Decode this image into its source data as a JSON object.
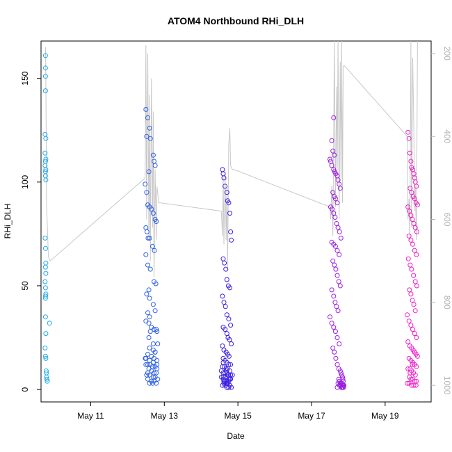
{
  "chart_data": {
    "type": "scatter",
    "title": "ATOM4 Northbound RHi_DLH",
    "xlabel": "Date",
    "ylabel": "RHi_DLH",
    "x_ticks": [
      "May 11",
      "May 13",
      "May 15",
      "May 17",
      "May 19"
    ],
    "xlim": [
      9.65,
      20.25
    ],
    "ylim": [
      -6,
      168
    ],
    "y_ticks": [
      0,
      50,
      100,
      150
    ],
    "y2_ticks": [
      200,
      400,
      600,
      800,
      1000
    ],
    "y2lim": [
      1040,
      170
    ],
    "grid": false,
    "colors": {
      "point_start": "#1FA8E8",
      "point_mid": "#3A1FE0",
      "point_end": "#F01FC8",
      "pressure_line": "#c8c8c8",
      "axis": "#000000",
      "right_axis": "#b3b3b3"
    },
    "series": [
      {
        "kind": "points",
        "color": "#1FA8E8",
        "x": [
          9.77,
          9.77,
          9.77,
          9.77,
          9.76,
          9.78,
          9.76,
          9.78,
          9.77,
          9.76,
          9.78,
          9.77,
          9.77,
          9.78,
          9.76,
          9.77,
          9.78,
          9.77,
          9.78,
          9.76,
          9.77,
          9.78,
          9.77,
          9.77,
          9.77,
          9.78,
          9.76,
          9.77,
          9.78,
          9.79,
          9.8,
          9.8,
          9.81,
          9.82,
          9.88
        ],
        "y": [
          161,
          155,
          151,
          144,
          123,
          121,
          114,
          111,
          110,
          108,
          106,
          105,
          103,
          101,
          73,
          68,
          61,
          59,
          56,
          52,
          49,
          46,
          45,
          44,
          35,
          27,
          20,
          16,
          15,
          9,
          8,
          6,
          5,
          4,
          32
        ]
      },
      {
        "kind": "points",
        "color": "#2E5FE8",
        "x": [
          12.5,
          12.55,
          12.6,
          12.52,
          12.62,
          12.7,
          12.72,
          12.75,
          12.58,
          12.48,
          12.52,
          12.55,
          12.6,
          12.65,
          12.7,
          12.75,
          12.78,
          12.5,
          12.53,
          12.56,
          12.6,
          12.68,
          12.73,
          12.5,
          12.55,
          12.62,
          12.72,
          12.77,
          12.58,
          12.52,
          12.6,
          12.7,
          12.75,
          12.55,
          12.6,
          12.5,
          12.58,
          12.65,
          12.72,
          12.78,
          12.8,
          12.82,
          12.6,
          12.7,
          12.75,
          12.55,
          12.65,
          12.48,
          12.72,
          12.8,
          12.6,
          12.7,
          12.55,
          12.62,
          12.5,
          12.68,
          12.75,
          12.8,
          12.58,
          12.65,
          12.72,
          12.78,
          12.52,
          12.6,
          12.7,
          12.75,
          12.82,
          12.55,
          12.65,
          12.72,
          12.6,
          12.68,
          12.78,
          12.5,
          12.58,
          12.62,
          12.7,
          12.75,
          12.8,
          12.55
        ],
        "y": [
          135,
          131,
          126,
          122,
          121,
          113,
          110,
          108,
          105,
          99,
          95,
          89,
          88,
          87,
          85,
          82,
          81,
          78,
          76,
          73,
          73,
          69,
          67,
          65,
          60,
          58,
          52,
          51,
          48,
          46,
          44,
          41,
          38,
          37,
          35,
          33,
          32,
          30,
          29,
          29,
          28,
          22,
          20,
          19,
          18,
          17,
          16,
          15,
          15,
          14,
          14,
          13,
          12,
          12,
          12,
          11,
          11,
          10,
          10,
          9,
          8,
          8,
          7,
          7,
          6,
          6,
          5,
          5,
          4,
          4,
          3,
          3,
          3,
          15,
          25,
          28,
          22,
          18,
          12,
          8
        ]
      },
      {
        "kind": "points",
        "color": "#3A1FE0",
        "x": [
          14.58,
          14.6,
          14.62,
          14.65,
          14.7,
          14.72,
          14.75,
          14.78,
          14.8,
          14.82,
          14.6,
          14.63,
          14.67,
          14.7,
          14.74,
          14.78,
          14.58,
          14.62,
          14.66,
          14.7,
          14.75,
          14.8,
          14.6,
          14.65,
          14.7,
          14.73,
          14.77,
          14.82,
          14.58,
          14.62,
          14.68,
          14.72,
          14.76,
          14.6,
          14.65,
          14.7,
          14.75,
          14.8,
          14.58,
          14.63,
          14.68,
          14.72,
          14.78,
          14.55,
          14.6,
          14.65,
          14.7,
          14.75,
          14.8,
          14.85,
          14.55,
          14.6,
          14.65,
          14.7,
          14.75,
          14.8,
          14.6,
          14.65,
          14.7,
          14.75,
          14.62,
          14.68,
          14.72,
          14.78,
          14.58,
          14.65,
          14.7,
          14.75,
          14.82,
          14.6,
          14.68,
          14.72,
          14.78,
          14.62,
          14.7
        ],
        "y": [
          106,
          104,
          102,
          98,
          95,
          91,
          90,
          85,
          76,
          72,
          63,
          61,
          58,
          53,
          50,
          49,
          45,
          42,
          40,
          36,
          34,
          31,
          30,
          29,
          27,
          25,
          24,
          22,
          21,
          19,
          18,
          17,
          16,
          15,
          14,
          13,
          12,
          12,
          11,
          11,
          10,
          10,
          9,
          9,
          8,
          8,
          8,
          7,
          7,
          7,
          6,
          6,
          6,
          6,
          5,
          5,
          5,
          4,
          4,
          4,
          3,
          3,
          3,
          2,
          2,
          2,
          1,
          1,
          1,
          13,
          9,
          7,
          5,
          4,
          3
        ]
      },
      {
        "kind": "points",
        "color": "#9A1FE0",
        "x": [
          17.6,
          17.55,
          17.58,
          17.62,
          17.5,
          17.52,
          17.55,
          17.6,
          17.63,
          17.66,
          17.7,
          17.72,
          17.75,
          17.78,
          17.58,
          17.62,
          17.65,
          17.7,
          17.52,
          17.56,
          17.6,
          17.64,
          17.68,
          17.72,
          17.76,
          17.8,
          17.55,
          17.6,
          17.65,
          17.7,
          17.75,
          17.58,
          17.62,
          17.66,
          17.7,
          17.74,
          17.78,
          17.55,
          17.6,
          17.64,
          17.68,
          17.72,
          17.5,
          17.55,
          17.6,
          17.65,
          17.7,
          17.75,
          17.58,
          17.62,
          17.66,
          17.7,
          17.74,
          17.78,
          17.8,
          17.82,
          17.84,
          17.85,
          17.86,
          17.75,
          17.78,
          17.8,
          17.82,
          17.84,
          17.86,
          17.88,
          17.76,
          17.79,
          17.81,
          17.83,
          17.85,
          17.87,
          17.7,
          17.72,
          17.74
        ],
        "y": [
          131,
          120,
          115,
          113,
          111,
          110,
          108,
          106,
          105,
          104,
          103,
          101,
          99,
          97,
          95,
          93,
          92,
          90,
          88,
          87,
          85,
          83,
          80,
          78,
          76,
          73,
          71,
          70,
          69,
          67,
          65,
          62,
          60,
          58,
          55,
          52,
          50,
          48,
          45,
          42,
          40,
          38,
          35,
          32,
          30,
          28,
          25,
          22,
          20,
          18,
          15,
          12,
          10,
          9,
          8,
          7,
          6,
          5,
          4,
          4,
          3,
          3,
          3,
          2,
          2,
          2,
          2,
          2,
          1,
          1,
          1,
          1,
          1,
          3,
          5
        ]
      },
      {
        "kind": "points",
        "color": "#F01FC8",
        "x": [
          19.62,
          19.65,
          19.67,
          19.7,
          19.72,
          19.75,
          19.78,
          19.8,
          19.82,
          19.85,
          19.68,
          19.72,
          19.76,
          19.8,
          19.84,
          19.88,
          19.62,
          19.66,
          19.7,
          19.74,
          19.78,
          19.82,
          19.86,
          19.65,
          19.7,
          19.75,
          19.8,
          19.85,
          19.63,
          19.68,
          19.72,
          19.77,
          19.82,
          19.86,
          19.66,
          19.7,
          19.74,
          19.78,
          19.82,
          19.6,
          19.65,
          19.7,
          19.75,
          19.8,
          19.85,
          19.62,
          19.67,
          19.72,
          19.76,
          19.8,
          19.84,
          19.88,
          19.65,
          19.7,
          19.75,
          19.8,
          19.85,
          19.62,
          19.68,
          19.72,
          19.77,
          19.82,
          19.66,
          19.7,
          19.75,
          19.8,
          19.85,
          19.6,
          19.65,
          19.72,
          19.78,
          19.84,
          19.68,
          19.74,
          19.8
        ],
        "y": [
          124,
          121,
          114,
          110,
          107,
          106,
          104,
          102,
          100,
          98,
          97,
          95,
          93,
          92,
          90,
          89,
          88,
          86,
          84,
          82,
          80,
          78,
          76,
          74,
          72,
          70,
          67,
          65,
          63,
          60,
          58,
          55,
          52,
          50,
          48,
          46,
          43,
          41,
          38,
          36,
          33,
          31,
          29,
          27,
          25,
          23,
          21,
          20,
          19,
          18,
          17,
          16,
          15,
          14,
          13,
          12,
          11,
          10,
          10,
          9,
          8,
          7,
          6,
          5,
          5,
          4,
          4,
          3,
          3,
          2,
          2,
          2,
          8,
          12,
          18
        ]
      }
    ],
    "pressure": {
      "kind": "line",
      "axis": "right",
      "x": [
        9.77,
        9.78,
        9.79,
        9.8,
        9.85,
        9.9,
        12.48,
        12.5,
        12.52,
        12.55,
        12.58,
        12.6,
        12.62,
        12.65,
        12.68,
        12.7,
        12.72,
        12.75,
        12.78,
        12.8,
        12.85,
        12.9,
        14.55,
        14.58,
        14.6,
        14.62,
        14.65,
        14.68,
        14.7,
        14.72,
        14.75,
        14.78,
        14.8,
        14.85,
        14.9,
        17.5,
        17.52,
        17.55,
        17.58,
        17.6,
        17.62,
        17.65,
        17.68,
        17.7,
        17.72,
        17.75,
        17.78,
        17.8,
        17.82,
        17.84,
        17.86,
        17.9,
        19.6,
        19.62,
        19.65,
        19.67,
        19.7,
        19.72,
        19.75,
        19.78,
        19.8,
        19.82,
        19.85,
        19.88
      ],
      "y": [
        185,
        250,
        400,
        560,
        690,
        700,
        500,
        180,
        600,
        200,
        650,
        300,
        700,
        260,
        620,
        340,
        740,
        480,
        650,
        520,
        560,
        560,
        580,
        640,
        500,
        660,
        490,
        650,
        520,
        720,
        420,
        380,
        470,
        480,
        480,
        570,
        600,
        520,
        640,
        420,
        170,
        570,
        280,
        480,
        170,
        600,
        220,
        500,
        170,
        560,
        230,
        230,
        400,
        600,
        550,
        650,
        170,
        620,
        210,
        380,
        580,
        520,
        650,
        170
      ]
    }
  }
}
